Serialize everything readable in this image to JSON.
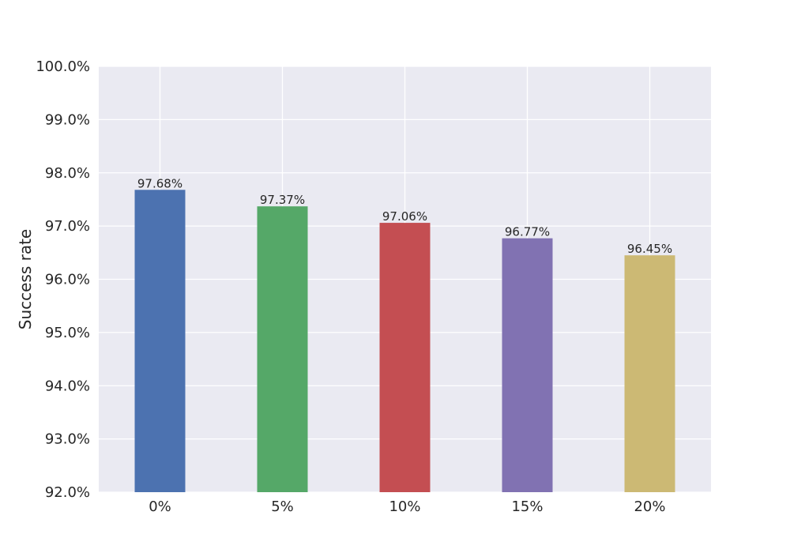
{
  "chart_data": {
    "type": "bar",
    "categories": [
      "0%",
      "5%",
      "10%",
      "15%",
      "20%"
    ],
    "values": [
      97.68,
      97.37,
      97.06,
      96.77,
      96.45
    ],
    "value_labels": [
      "97.68%",
      "97.37%",
      "97.06%",
      "96.77%",
      "96.45%"
    ],
    "colors": [
      "#4c72b0",
      "#55a868",
      "#c44e52",
      "#8172b2",
      "#ccb974"
    ],
    "title": "",
    "xlabel": "",
    "ylabel": "Success rate",
    "ylim": [
      92,
      100
    ],
    "yticks": [
      92,
      93,
      94,
      95,
      96,
      97,
      98,
      99,
      100
    ],
    "ytick_labels": [
      "92.0%",
      "93.0%",
      "94.0%",
      "95.0%",
      "96.0%",
      "97.0%",
      "98.0%",
      "99.0%",
      "100.0%"
    ],
    "grid": true,
    "background_color": "#eaeaf2",
    "grid_color": "#ffffff"
  }
}
